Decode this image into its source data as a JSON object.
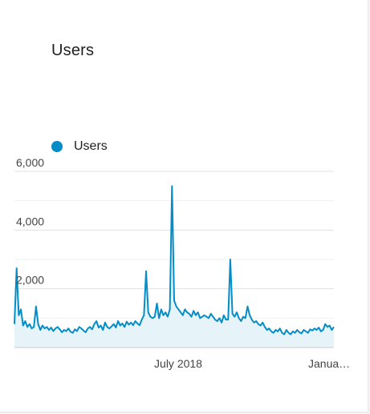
{
  "title": "Users",
  "colors": {
    "series": "#058dc7",
    "fill": "#e6f4fa",
    "grid": "#e0e0e0"
  },
  "chart_data": {
    "type": "area",
    "legend": [
      "Users"
    ],
    "legend_position": "top-left",
    "grid": true,
    "ylim": [
      0,
      6000
    ],
    "yticks": [
      {
        "value": 2000,
        "label": "2,000"
      },
      {
        "value": 4000,
        "label": "4,000"
      },
      {
        "value": 6000,
        "label": "6,000"
      }
    ],
    "xtick_labels": [
      "July 2018",
      "Janua…"
    ],
    "series": [
      {
        "name": "Users",
        "values": [
          800,
          2700,
          1100,
          1300,
          750,
          900,
          700,
          800,
          650,
          700,
          1400,
          800,
          600,
          750,
          650,
          700,
          600,
          680,
          560,
          650,
          700,
          620,
          520,
          600,
          560,
          650,
          540,
          500,
          620,
          560,
          700,
          650,
          580,
          520,
          650,
          700,
          620,
          800,
          900,
          680,
          750,
          600,
          850,
          700,
          650,
          720,
          800,
          680,
          900,
          750,
          820,
          700,
          880,
          780,
          850,
          760,
          900,
          820,
          760,
          950,
          1100,
          2600,
          1200,
          1050,
          1000,
          1050,
          1500,
          1000,
          1300,
          1100,
          1200,
          1050,
          1300,
          5500,
          1600,
          1400,
          1300,
          1200,
          1100,
          1300,
          1200,
          1150,
          1050,
          1250,
          1100,
          1200,
          1000,
          1050,
          1100,
          1050,
          1000,
          1150,
          1050,
          950,
          900,
          1000,
          850,
          1100,
          950,
          950,
          3000,
          1150,
          1050,
          1200,
          1000,
          900,
          1050,
          1000,
          1400,
          1100,
          950,
          850,
          900,
          800,
          750,
          850,
          700,
          600,
          650,
          550,
          500,
          600,
          550,
          650,
          500,
          450,
          600,
          500,
          450,
          550,
          500,
          600,
          520,
          480,
          600,
          550,
          500,
          620,
          580,
          650,
          600,
          680,
          550,
          600,
          800,
          700,
          750,
          600,
          700
        ]
      }
    ]
  }
}
